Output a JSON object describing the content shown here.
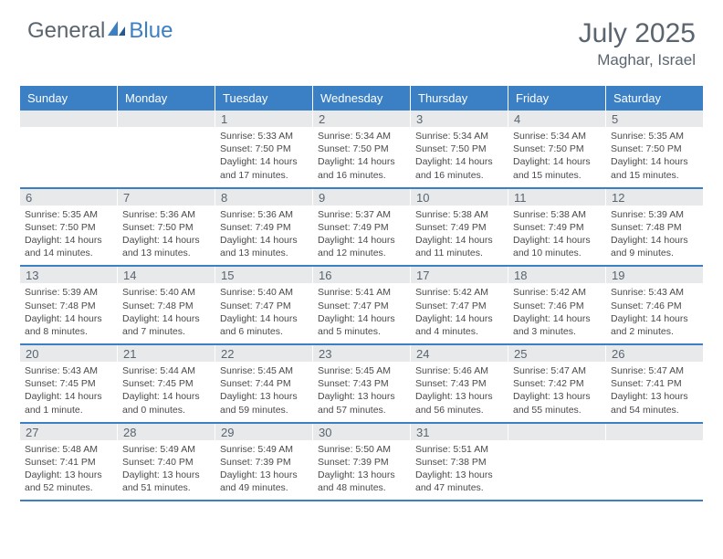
{
  "logo": {
    "part1": "General",
    "part2": "Blue"
  },
  "title": "July 2025",
  "location": "Maghar, Israel",
  "colors": {
    "header_bg": "#3b7fc4",
    "header_text": "#ffffff",
    "daynum_bg": "#e7e9ea",
    "text_gray": "#5a6570",
    "body_text": "#4a4a4a",
    "rule": "#3b7fc4"
  },
  "day_headers": [
    "Sunday",
    "Monday",
    "Tuesday",
    "Wednesday",
    "Thursday",
    "Friday",
    "Saturday"
  ],
  "weeks": [
    [
      {
        "blank": true
      },
      {
        "blank": true
      },
      {
        "num": "1",
        "sunrise": "5:33 AM",
        "sunset": "7:50 PM",
        "daylight": "14 hours and 17 minutes."
      },
      {
        "num": "2",
        "sunrise": "5:34 AM",
        "sunset": "7:50 PM",
        "daylight": "14 hours and 16 minutes."
      },
      {
        "num": "3",
        "sunrise": "5:34 AM",
        "sunset": "7:50 PM",
        "daylight": "14 hours and 16 minutes."
      },
      {
        "num": "4",
        "sunrise": "5:34 AM",
        "sunset": "7:50 PM",
        "daylight": "14 hours and 15 minutes."
      },
      {
        "num": "5",
        "sunrise": "5:35 AM",
        "sunset": "7:50 PM",
        "daylight": "14 hours and 15 minutes."
      }
    ],
    [
      {
        "num": "6",
        "sunrise": "5:35 AM",
        "sunset": "7:50 PM",
        "daylight": "14 hours and 14 minutes."
      },
      {
        "num": "7",
        "sunrise": "5:36 AM",
        "sunset": "7:50 PM",
        "daylight": "14 hours and 13 minutes."
      },
      {
        "num": "8",
        "sunrise": "5:36 AM",
        "sunset": "7:49 PM",
        "daylight": "14 hours and 13 minutes."
      },
      {
        "num": "9",
        "sunrise": "5:37 AM",
        "sunset": "7:49 PM",
        "daylight": "14 hours and 12 minutes."
      },
      {
        "num": "10",
        "sunrise": "5:38 AM",
        "sunset": "7:49 PM",
        "daylight": "14 hours and 11 minutes."
      },
      {
        "num": "11",
        "sunrise": "5:38 AM",
        "sunset": "7:49 PM",
        "daylight": "14 hours and 10 minutes."
      },
      {
        "num": "12",
        "sunrise": "5:39 AM",
        "sunset": "7:48 PM",
        "daylight": "14 hours and 9 minutes."
      }
    ],
    [
      {
        "num": "13",
        "sunrise": "5:39 AM",
        "sunset": "7:48 PM",
        "daylight": "14 hours and 8 minutes."
      },
      {
        "num": "14",
        "sunrise": "5:40 AM",
        "sunset": "7:48 PM",
        "daylight": "14 hours and 7 minutes."
      },
      {
        "num": "15",
        "sunrise": "5:40 AM",
        "sunset": "7:47 PM",
        "daylight": "14 hours and 6 minutes."
      },
      {
        "num": "16",
        "sunrise": "5:41 AM",
        "sunset": "7:47 PM",
        "daylight": "14 hours and 5 minutes."
      },
      {
        "num": "17",
        "sunrise": "5:42 AM",
        "sunset": "7:47 PM",
        "daylight": "14 hours and 4 minutes."
      },
      {
        "num": "18",
        "sunrise": "5:42 AM",
        "sunset": "7:46 PM",
        "daylight": "14 hours and 3 minutes."
      },
      {
        "num": "19",
        "sunrise": "5:43 AM",
        "sunset": "7:46 PM",
        "daylight": "14 hours and 2 minutes."
      }
    ],
    [
      {
        "num": "20",
        "sunrise": "5:43 AM",
        "sunset": "7:45 PM",
        "daylight": "14 hours and 1 minute."
      },
      {
        "num": "21",
        "sunrise": "5:44 AM",
        "sunset": "7:45 PM",
        "daylight": "14 hours and 0 minutes."
      },
      {
        "num": "22",
        "sunrise": "5:45 AM",
        "sunset": "7:44 PM",
        "daylight": "13 hours and 59 minutes."
      },
      {
        "num": "23",
        "sunrise": "5:45 AM",
        "sunset": "7:43 PM",
        "daylight": "13 hours and 57 minutes."
      },
      {
        "num": "24",
        "sunrise": "5:46 AM",
        "sunset": "7:43 PM",
        "daylight": "13 hours and 56 minutes."
      },
      {
        "num": "25",
        "sunrise": "5:47 AM",
        "sunset": "7:42 PM",
        "daylight": "13 hours and 55 minutes."
      },
      {
        "num": "26",
        "sunrise": "5:47 AM",
        "sunset": "7:41 PM",
        "daylight": "13 hours and 54 minutes."
      }
    ],
    [
      {
        "num": "27",
        "sunrise": "5:48 AM",
        "sunset": "7:41 PM",
        "daylight": "13 hours and 52 minutes."
      },
      {
        "num": "28",
        "sunrise": "5:49 AM",
        "sunset": "7:40 PM",
        "daylight": "13 hours and 51 minutes."
      },
      {
        "num": "29",
        "sunrise": "5:49 AM",
        "sunset": "7:39 PM",
        "daylight": "13 hours and 49 minutes."
      },
      {
        "num": "30",
        "sunrise": "5:50 AM",
        "sunset": "7:39 PM",
        "daylight": "13 hours and 48 minutes."
      },
      {
        "num": "31",
        "sunrise": "5:51 AM",
        "sunset": "7:38 PM",
        "daylight": "13 hours and 47 minutes."
      },
      {
        "blank": true
      },
      {
        "blank": true
      }
    ]
  ],
  "labels": {
    "sunrise": "Sunrise: ",
    "sunset": "Sunset: ",
    "daylight": "Daylight: "
  }
}
